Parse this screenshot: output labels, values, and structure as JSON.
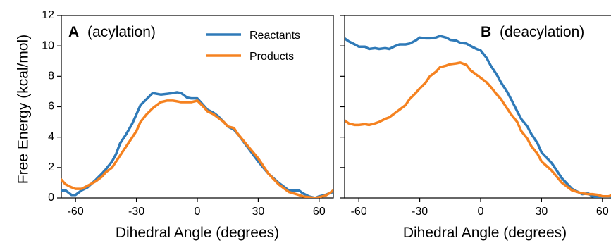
{
  "colors": {
    "reactants": "#2f7ab8",
    "products": "#f58220"
  },
  "ylabel": "Free Energy (kcal/mol)",
  "chart_data": [
    {
      "type": "line",
      "panel": "A",
      "title": "(acylation)",
      "xlabel": "Dihedral Angle (degrees)",
      "ylabel": "Free Energy (kcal/mol)",
      "xlim": [
        -67,
        67
      ],
      "ylim": [
        0,
        12
      ],
      "xticks": [
        -60,
        -30,
        0,
        30,
        60
      ],
      "yticks": [
        0,
        2,
        4,
        6,
        8,
        10,
        12
      ],
      "legend": {
        "placement": "top-right",
        "entries": [
          "Reactants",
          "Products"
        ]
      },
      "series": [
        {
          "name": "Reactants",
          "x": [
            -67,
            -65,
            -62,
            -60,
            -57,
            -54,
            -50,
            -47,
            -45,
            -42,
            -40,
            -38,
            -35,
            -32,
            -30,
            -28,
            -25,
            -22,
            -20,
            -18,
            -15,
            -12,
            -10,
            -8,
            -5,
            -3,
            0,
            3,
            5,
            8,
            10,
            13,
            15,
            18,
            20,
            25,
            30,
            35,
            40,
            45,
            50,
            52,
            55,
            58,
            60,
            63,
            65,
            67
          ],
          "y": [
            0.5,
            0.5,
            0.2,
            0.2,
            0.5,
            0.7,
            1.2,
            1.6,
            1.9,
            2.4,
            2.9,
            3.6,
            4.2,
            4.9,
            5.5,
            6.1,
            6.5,
            6.9,
            6.85,
            6.8,
            6.85,
            6.9,
            6.95,
            6.9,
            6.6,
            6.55,
            6.55,
            6.1,
            5.8,
            5.6,
            5.4,
            5.0,
            4.7,
            4.5,
            4.2,
            3.3,
            2.4,
            1.6,
            1.0,
            0.5,
            0.5,
            0.3,
            0.1,
            0.0,
            0.1,
            0.2,
            0.3,
            0.4
          ]
        },
        {
          "name": "Products",
          "x": [
            -67,
            -65,
            -62,
            -60,
            -57,
            -54,
            -50,
            -47,
            -45,
            -42,
            -40,
            -38,
            -35,
            -32,
            -30,
            -28,
            -25,
            -22,
            -20,
            -18,
            -15,
            -12,
            -10,
            -8,
            -5,
            -3,
            0,
            3,
            5,
            8,
            10,
            13,
            15,
            18,
            20,
            25,
            30,
            35,
            40,
            45,
            50,
            52,
            55,
            58,
            60,
            63,
            65,
            67
          ],
          "y": [
            1.2,
            0.9,
            0.7,
            0.6,
            0.6,
            0.8,
            1.1,
            1.4,
            1.7,
            2.0,
            2.4,
            2.8,
            3.4,
            4.0,
            4.4,
            5.0,
            5.5,
            5.9,
            6.1,
            6.3,
            6.4,
            6.4,
            6.35,
            6.3,
            6.3,
            6.3,
            6.4,
            6.0,
            5.7,
            5.5,
            5.3,
            5.0,
            4.7,
            4.6,
            4.2,
            3.4,
            2.6,
            1.6,
            0.9,
            0.4,
            0.2,
            0.1,
            0.05,
            0.0,
            0.05,
            0.15,
            0.3,
            0.5
          ]
        }
      ]
    },
    {
      "type": "line",
      "panel": "B",
      "title": "(deacylation)",
      "xlabel": "Dihedral Angle (degrees)",
      "xlim": [
        -67,
        67
      ],
      "ylim": [
        0,
        12
      ],
      "xticks": [
        -60,
        -30,
        0,
        30,
        60
      ],
      "yticks": [
        0,
        2,
        4,
        6,
        8,
        10,
        12
      ],
      "series": [
        {
          "name": "Reactants",
          "x": [
            -67,
            -65,
            -62,
            -60,
            -57,
            -55,
            -52,
            -50,
            -47,
            -45,
            -42,
            -40,
            -37,
            -35,
            -32,
            -30,
            -27,
            -25,
            -22,
            -20,
            -17,
            -15,
            -12,
            -10,
            -7,
            -5,
            -2,
            0,
            3,
            5,
            8,
            10,
            13,
            15,
            18,
            20,
            23,
            25,
            28,
            30,
            35,
            40,
            45,
            50,
            53,
            55,
            58,
            60,
            63,
            65,
            67
          ],
          "y": [
            10.5,
            10.3,
            10.1,
            9.95,
            9.95,
            9.8,
            9.85,
            9.8,
            9.85,
            9.8,
            10.0,
            10.1,
            10.1,
            10.15,
            10.35,
            10.55,
            10.5,
            10.5,
            10.55,
            10.65,
            10.55,
            10.4,
            10.35,
            10.2,
            10.15,
            10.0,
            9.8,
            9.7,
            9.2,
            8.7,
            8.1,
            7.6,
            7.0,
            6.5,
            5.7,
            5.2,
            4.7,
            4.2,
            3.6,
            3.0,
            2.3,
            1.3,
            0.6,
            0.25,
            0.3,
            0.1,
            0.05,
            0.0,
            0.0,
            0.1,
            0.2
          ]
        },
        {
          "name": "Products",
          "x": [
            -67,
            -65,
            -62,
            -60,
            -57,
            -55,
            -52,
            -50,
            -47,
            -45,
            -42,
            -40,
            -37,
            -35,
            -32,
            -30,
            -27,
            -25,
            -22,
            -20,
            -17,
            -15,
            -12,
            -10,
            -7,
            -5,
            -2,
            0,
            3,
            5,
            8,
            10,
            13,
            15,
            18,
            20,
            23,
            25,
            28,
            30,
            35,
            40,
            45,
            50,
            53,
            55,
            58,
            60,
            63,
            65,
            67
          ],
          "y": [
            5.1,
            4.9,
            4.8,
            4.8,
            4.85,
            4.8,
            4.9,
            5.0,
            5.2,
            5.3,
            5.6,
            5.8,
            6.1,
            6.5,
            6.9,
            7.2,
            7.6,
            8.0,
            8.3,
            8.6,
            8.7,
            8.8,
            8.85,
            8.9,
            8.75,
            8.4,
            8.1,
            7.9,
            7.6,
            7.3,
            6.8,
            6.5,
            5.9,
            5.5,
            5.0,
            4.4,
            3.9,
            3.4,
            2.9,
            2.4,
            1.8,
            1.0,
            0.5,
            0.3,
            0.25,
            0.25,
            0.2,
            0.1,
            0.1,
            0.2,
            0.5
          ]
        }
      ]
    }
  ]
}
